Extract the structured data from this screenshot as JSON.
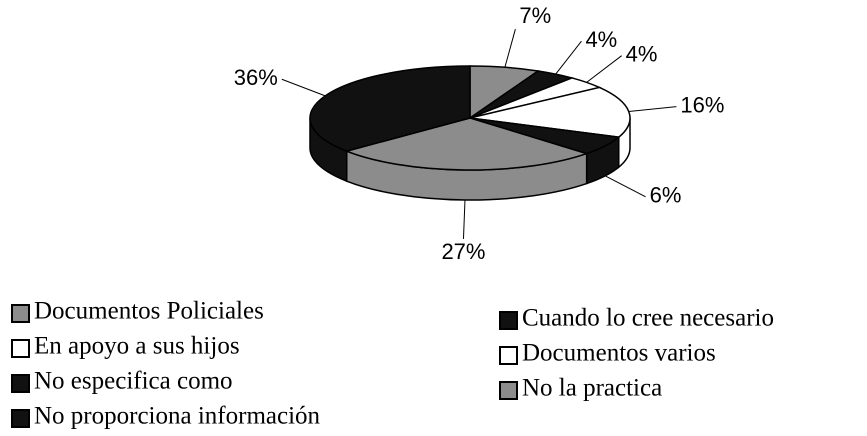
{
  "chart_data": {
    "type": "pie3d",
    "categories": [
      "Documentos Policiales",
      "Cuando lo cree necesario",
      "En apoyo a sus hijos",
      "Documentos varios",
      "No especifica como",
      "No la practica",
      "No proporciona información"
    ],
    "values": [
      7,
      4,
      4,
      16,
      6,
      27,
      36
    ],
    "value_labels": [
      "7%",
      "4%",
      "4%",
      "16%",
      "6%",
      "27%",
      "36%"
    ],
    "colors": [
      "#8c8c8c",
      "#111111",
      "#ffffff",
      "#ffffff",
      "#111111",
      "#8c8c8c",
      "#111111"
    ]
  }
}
